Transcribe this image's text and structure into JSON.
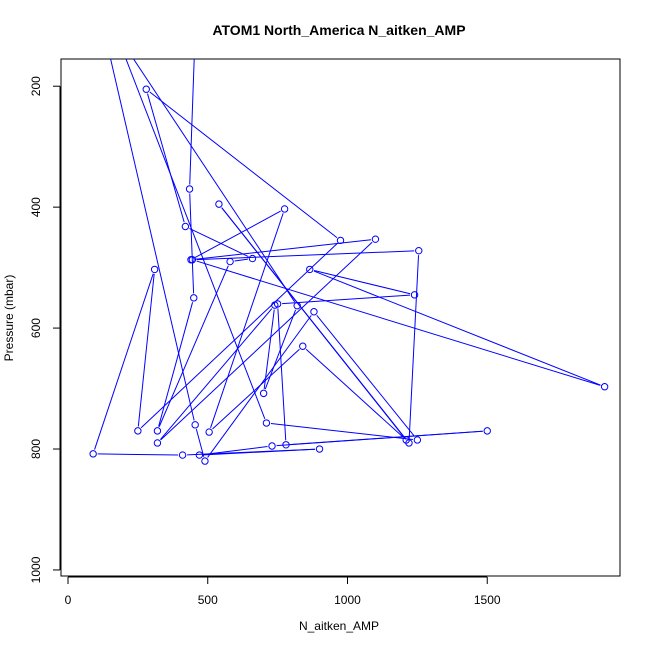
{
  "chart_data": {
    "type": "line",
    "title": "ATOM1 North_America N_aitken_AMP",
    "xlabel": "N_aitken_AMP",
    "ylabel": "Pressure (mbar)",
    "xlim": [
      -25,
      1975
    ],
    "ylim": [
      1010,
      155
    ],
    "x_ticks": [
      0,
      500,
      1000,
      1500
    ],
    "x_tick_labels": [
      "0",
      "500",
      "1000",
      "1500"
    ],
    "y_ticks": [
      200,
      400,
      600,
      800,
      1000
    ],
    "y_tick_labels": [
      "200",
      "400",
      "600",
      "800",
      "1000"
    ],
    "grid": false,
    "legend": "none",
    "series_color": "#0000ff",
    "series": [
      {
        "x": [
          455,
          435,
          450,
          320,
          580,
          660,
          420,
          280,
          975,
          250,
          310,
          90,
          410,
          900,
          470,
          730,
          1500,
          780,
          750,
          1240,
          865,
          1920,
          445,
          1255,
          1220,
          540,
          1210,
          840,
          505,
          775,
          440,
          1100,
          320,
          740,
          700,
          820,
          170,
          710,
          1250,
          880,
          490,
          455,
          130
        ],
        "y": [
          110,
          370,
          550,
          770,
          490,
          485,
          432,
          205,
          455,
          770,
          503,
          808,
          810,
          800,
          810,
          795,
          770,
          793,
          560,
          545,
          503,
          697,
          487,
          472,
          790,
          395,
          785,
          630,
          772,
          403,
          487,
          453,
          790,
          562,
          708,
          563,
          110,
          757,
          785,
          573,
          820,
          760,
          110
        ]
      }
    ]
  }
}
